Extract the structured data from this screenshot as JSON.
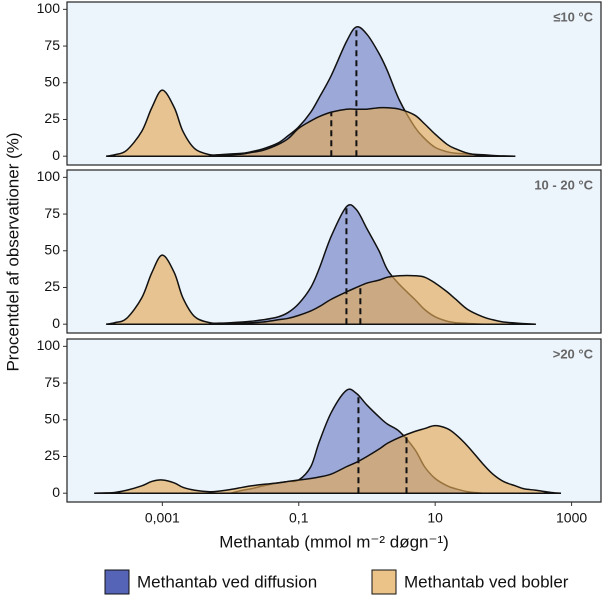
{
  "chart_data": {
    "type": "density",
    "x_label": "Methantab (mmol m⁻² døgn⁻¹)",
    "y_label": "Procentdel af observationer (%)",
    "log_x": true,
    "xlim": [
      4e-05,
      2700
    ],
    "xticks": [
      {
        "value": 0.001,
        "label": "0,001"
      },
      {
        "value": 0.1,
        "label": "0,1"
      },
      10,
      1000
    ],
    "ylim": [
      -6,
      105
    ],
    "yticks": [
      0,
      25,
      50,
      75,
      100
    ],
    "series": [
      {
        "name": "Methantab ved diffusion",
        "color": "#4c5cb3"
      },
      {
        "name": "Methantab ved bobler",
        "color": "#e3a956"
      }
    ],
    "x": [
      0.0001,
      0.00015,
      0.0002,
      0.0003,
      0.0005,
      0.0007,
      0.001,
      0.0015,
      0.002,
      0.003,
      0.005,
      0.007,
      0.01,
      0.015,
      0.02,
      0.03,
      0.05,
      0.07,
      0.1,
      0.15,
      0.2,
      0.3,
      0.5,
      0.7,
      1,
      1.5,
      2,
      3,
      5,
      7,
      10,
      15,
      20,
      30,
      50,
      70,
      100,
      150,
      200,
      300,
      500,
      700
    ],
    "panels": [
      {
        "label": "≤10 °C",
        "values": [
          [
            null,
            null,
            null,
            null,
            null,
            null,
            null,
            null,
            null,
            null,
            0.5,
            1,
            1.5,
            2,
            3,
            5,
            9,
            14,
            20,
            30,
            40,
            55,
            78,
            88,
            83,
            70,
            58,
            38,
            20,
            12,
            6,
            3,
            2,
            1.5,
            1,
            0.5,
            0.2,
            0,
            null,
            null,
            null,
            null
          ],
          [
            null,
            0,
            1,
            4,
            17,
            33,
            45,
            33,
            17,
            5,
            1,
            1,
            1,
            1.5,
            2.5,
            4,
            8,
            12,
            19,
            24,
            27,
            30,
            32,
            32,
            32,
            33,
            33,
            32,
            28,
            22,
            15,
            8,
            5,
            2,
            0.5,
            0,
            null,
            null,
            null,
            null,
            null,
            null
          ]
        ],
        "medians": [
          0.7,
          0.3
        ]
      },
      {
        "label": "10 - 20 °C",
        "values": [
          [
            null,
            null,
            null,
            null,
            null,
            null,
            null,
            null,
            null,
            null,
            0.5,
            0.7,
            1,
            1.5,
            2,
            3,
            5,
            8,
            14,
            25,
            38,
            60,
            80,
            78,
            65,
            50,
            37,
            27,
            17,
            10,
            5,
            2,
            1,
            0.5,
            0,
            null,
            null,
            null,
            null,
            null,
            null,
            null
          ],
          [
            null,
            0,
            1,
            4,
            18,
            35,
            47,
            35,
            18,
            5,
            1,
            0.5,
            0.5,
            0.7,
            1,
            1.5,
            3,
            4,
            6,
            9,
            12,
            17,
            22,
            25,
            28,
            30,
            32,
            33,
            33,
            32,
            28,
            22,
            17,
            10,
            5,
            3,
            1.5,
            0.8,
            0.4,
            0,
            null,
            null
          ]
        ],
        "medians": [
          0.5,
          0.8
        ]
      },
      {
        "label": ">20 °C",
        "values": [
          [
            null,
            null,
            null,
            null,
            null,
            null,
            null,
            null,
            null,
            null,
            null,
            null,
            0,
            2,
            3,
            5,
            7,
            8,
            9,
            18,
            35,
            55,
            70,
            68,
            60,
            52,
            47,
            42,
            30,
            18,
            10,
            5,
            3,
            1,
            0,
            null,
            null,
            null,
            null,
            null,
            null,
            null
          ],
          [
            0,
            0.2,
            0.5,
            2,
            5,
            8,
            9,
            7,
            4,
            2,
            1,
            1.5,
            2.5,
            4,
            5,
            6,
            7,
            8,
            9,
            10,
            11,
            13,
            18,
            21,
            25,
            30,
            34,
            38,
            42,
            44,
            46,
            44,
            40,
            32,
            20,
            13,
            8,
            5,
            3,
            2,
            0.5,
            0
          ]
        ],
        "medians": [
          0.75,
          3.8
        ]
      }
    ]
  }
}
